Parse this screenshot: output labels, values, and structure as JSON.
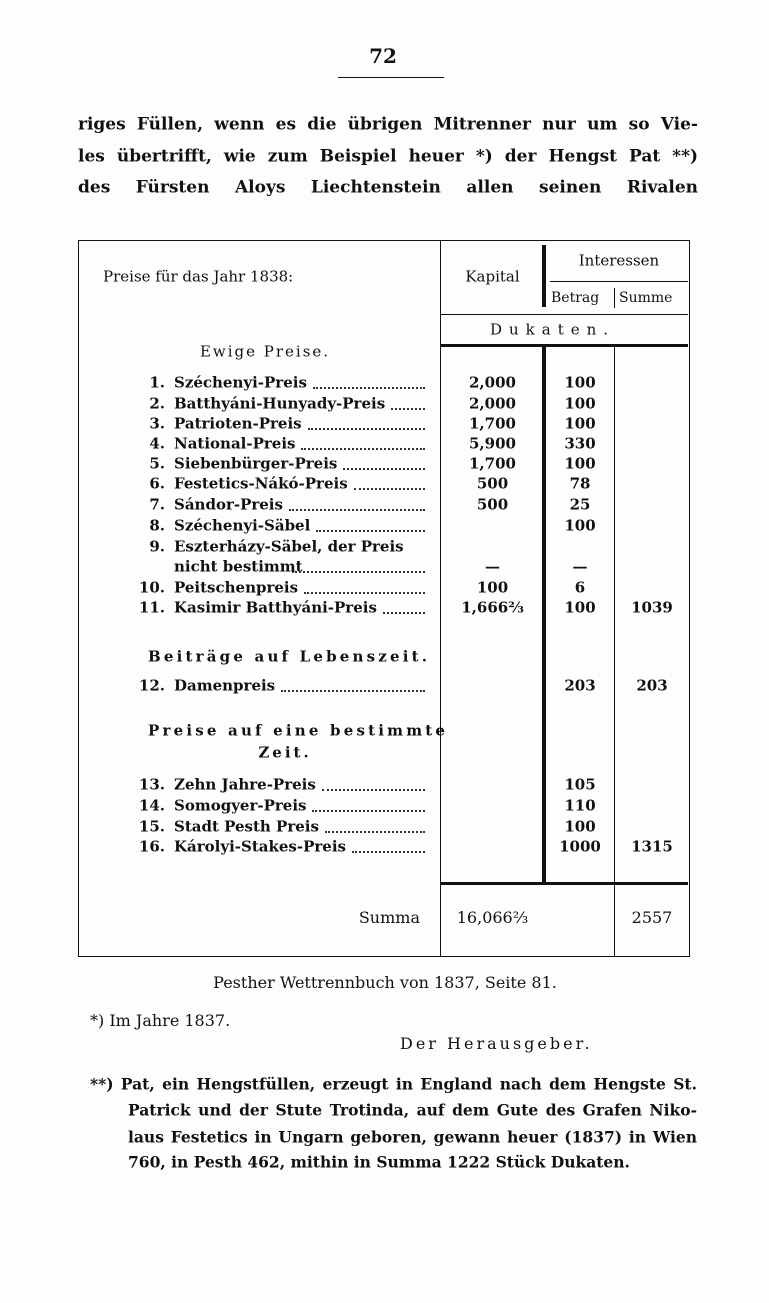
{
  "page_number": "72",
  "paragraph": [
    "riges Füllen, wenn es die übrigen Mitrenner nur um so Vie-",
    "les übertrifft, wie zum Beispiel heuer *) der Hengst Pat **)",
    "des Fürsten Aloys Liechtenstein allen seinen Rivalen"
  ],
  "table": {
    "header": {
      "title": "Preise für das Jahr 1838:",
      "kapital": "Kapital",
      "interessen": "Interessen",
      "betrag": "Betrag",
      "summe": "Summe",
      "unit": "Dukaten."
    },
    "sections": [
      {
        "title": "Ewige Preise.",
        "rows": [
          {
            "num": "1.",
            "name": "Széchenyi-Preis",
            "kapital": "2,000",
            "betrag": "100"
          },
          {
            "num": "2.",
            "name": "Batthyáni-Hunyady-Preis",
            "kapital": "2,000",
            "betrag": "100"
          },
          {
            "num": "3.",
            "name": "Patrioten-Preis",
            "kapital": "1,700",
            "betrag": "100"
          },
          {
            "num": "4.",
            "name": "National-Preis",
            "kapital": "5,900",
            "betrag": "330"
          },
          {
            "num": "5.",
            "name": "Siebenbürger-Preis",
            "kapital": "1,700",
            "betrag": "100"
          },
          {
            "num": "6.",
            "name": "Festetics-Nákó-Preis",
            "kapital": "500",
            "betrag": "78"
          },
          {
            "num": "7.",
            "name": "Sándor-Preis",
            "kapital": "500",
            "betrag": "25"
          },
          {
            "num": "8.",
            "name": "Széchenyi-Säbel",
            "betrag": "100"
          },
          {
            "num": "9.",
            "name": "Eszterházy-Säbel, der Preis",
            "name_cont": "nicht bestimmt",
            "kapital": "—",
            "betrag": "—"
          },
          {
            "num": "10.",
            "name": "Peitschenpreis",
            "kapital": "100",
            "betrag": "6"
          },
          {
            "num": "11.",
            "name": "Kasimir Batthyáni-Preis",
            "kapital": "1,666⅔",
            "betrag": "100",
            "summe": "1039"
          }
        ]
      },
      {
        "title": "Beiträge auf Lebenszeit.",
        "rows": [
          {
            "num": "12.",
            "name": "Damenpreis",
            "betrag": "203",
            "summe": "203"
          }
        ]
      },
      {
        "title": "Preise auf eine bestimmte",
        "title_cont": "Zeit.",
        "rows": [
          {
            "num": "13.",
            "name": "Zehn Jahre-Preis",
            "betrag": "105"
          },
          {
            "num": "14.",
            "name": "Somogyer-Preis",
            "betrag": "110"
          },
          {
            "num": "15.",
            "name": "Stadt Pesth Preis",
            "betrag": "100"
          },
          {
            "num": "16.",
            "name": "Károlyi-Stakes-Preis",
            "betrag": "1000",
            "summe": "1315"
          }
        ]
      }
    ],
    "total": {
      "label": "Summa",
      "kapital": "16,066⅔",
      "summe": "2557"
    }
  },
  "source": "Pesther Wettrennbuch von 1837, Seite 81.",
  "footnote_1": "*) Im Jahre 1837.",
  "signature": "Der Herausgeber.",
  "footnote_2": [
    "**) Pat, ein Hengstfüllen, erzeugt in England nach dem Hengste St.",
    "Patrick und der Stute Trotinda, auf dem Gute des Grafen Niko-",
    "laus Festetics in Ungarn geboren, gewann heuer (1837) in Wien",
    "760, in Pesth 462, mithin in Summa 1222 Stück Dukaten."
  ]
}
